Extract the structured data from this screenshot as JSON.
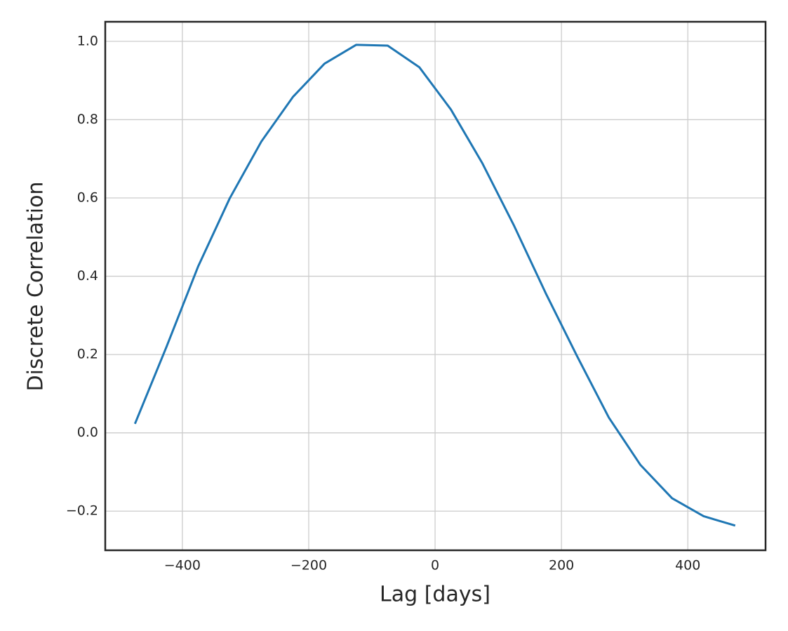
{
  "chart_data": {
    "type": "line",
    "xlabel": "Lag [days]",
    "ylabel": "Discrete Correlation",
    "x": [
      -475,
      -425,
      -375,
      -325,
      -275,
      -225,
      -175,
      -125,
      -75,
      -25,
      25,
      75,
      125,
      175,
      225,
      275,
      325,
      375,
      425,
      475
    ],
    "series": [
      {
        "color": "#1f77b4",
        "values": [
          0.023,
          0.22,
          0.425,
          0.599,
          0.744,
          0.858,
          0.943,
          0.991,
          0.989,
          0.934,
          0.826,
          0.688,
          0.529,
          0.357,
          0.195,
          0.039,
          -0.082,
          -0.167,
          -0.213,
          -0.237
        ]
      }
    ],
    "xlim": [
      -522,
      523
    ],
    "ylim": [
      -0.3,
      1.05
    ],
    "xticks": [
      {
        "value": -400,
        "label": "−400"
      },
      {
        "value": -200,
        "label": "−200"
      },
      0,
      200,
      400
    ],
    "yticks": [
      {
        "value": -0.2,
        "label": "−0.2"
      },
      {
        "value": 0,
        "label": "0.0"
      },
      0.2,
      0.4,
      0.6,
      0.8,
      {
        "value": 1,
        "label": "1.0"
      }
    ],
    "grid": true
  }
}
